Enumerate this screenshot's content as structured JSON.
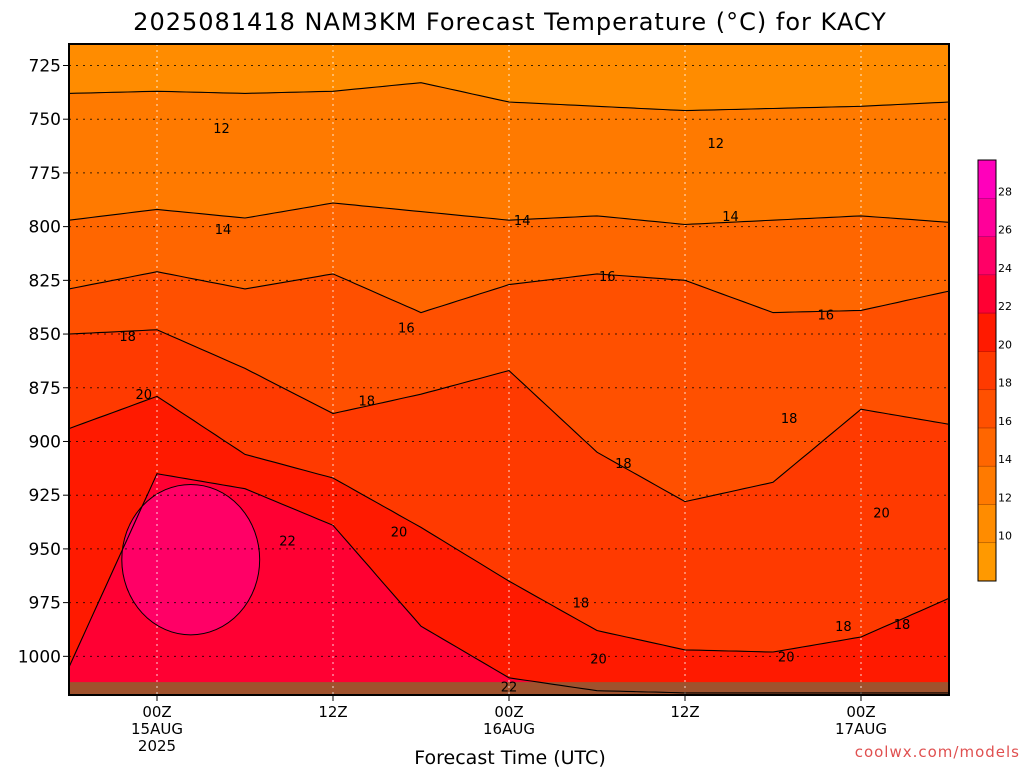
{
  "chart_data": {
    "type": "heatmap",
    "title": "2025081418 NAM3KM Forecast Temperature (°C) for KACY",
    "xlabel": "Forecast Time (UTC)",
    "ylabel": "",
    "credit": "coolwx.com/models",
    "y_axis": {
      "unit": "hPa",
      "inverted": true,
      "range": [
        715,
        1018
      ],
      "ticks": [
        {
          "value": 725,
          "label": "725"
        },
        {
          "value": 750,
          "label": "750"
        },
        {
          "value": 775,
          "label": "775"
        },
        {
          "value": 800,
          "label": "800"
        },
        {
          "value": 825,
          "label": "825"
        },
        {
          "value": 850,
          "label": "850"
        },
        {
          "value": 875,
          "label": "875"
        },
        {
          "value": 900,
          "label": "900"
        },
        {
          "value": 925,
          "label": "925"
        },
        {
          "value": 950,
          "label": "950"
        },
        {
          "value": 975,
          "label": "975"
        },
        {
          "value": 1000,
          "label": "1000"
        }
      ]
    },
    "x_axis": {
      "unit": "forecast hour",
      "range": [
        0,
        60
      ],
      "ticks": [
        {
          "value": 6,
          "lines": [
            "00Z",
            "15AUG",
            "2025"
          ]
        },
        {
          "value": 18,
          "lines": [
            "12Z"
          ]
        },
        {
          "value": 30,
          "lines": [
            "00Z",
            "16AUG"
          ]
        },
        {
          "value": 42,
          "lines": [
            "12Z"
          ]
        },
        {
          "value": 54,
          "lines": [
            "00Z",
            "17AUG"
          ]
        }
      ]
    },
    "grid": true,
    "surface_color": "#a0522d",
    "colorbar": {
      "position": "right",
      "levels": [
        8,
        10,
        12,
        14,
        16,
        18,
        20,
        22,
        24,
        26,
        28,
        30
      ],
      "colors": [
        "#ff9900",
        "#ff8c00",
        "#ff7a00",
        "#ff6600",
        "#ff5000",
        "#ff3a00",
        "#ff1a00",
        "#ff0033",
        "#ff0066",
        "#ff0099",
        "#ff00bb"
      ],
      "tick_labels": [
        "10",
        "12",
        "14",
        "16",
        "18",
        "20",
        "22",
        "24",
        "26",
        "28"
      ]
    },
    "isotherms": [
      {
        "value": 12,
        "pressure_by_hour": [
          [
            0,
            738
          ],
          [
            6,
            737
          ],
          [
            12,
            738
          ],
          [
            18,
            737
          ],
          [
            24,
            733
          ],
          [
            30,
            742
          ],
          [
            36,
            744
          ],
          [
            42,
            746
          ],
          [
            48,
            745
          ],
          [
            54,
            744
          ],
          [
            60,
            742
          ]
        ]
      },
      {
        "value": 14,
        "pressure_by_hour": [
          [
            0,
            797
          ],
          [
            6,
            792
          ],
          [
            12,
            796
          ],
          [
            18,
            789
          ],
          [
            24,
            793
          ],
          [
            30,
            797
          ],
          [
            36,
            795
          ],
          [
            42,
            799
          ],
          [
            48,
            797
          ],
          [
            54,
            795
          ],
          [
            60,
            798
          ]
        ]
      },
      {
        "value": 16,
        "pressure_by_hour": [
          [
            0,
            829
          ],
          [
            6,
            821
          ],
          [
            12,
            829
          ],
          [
            18,
            822
          ],
          [
            24,
            840
          ],
          [
            30,
            827
          ],
          [
            36,
            822
          ],
          [
            42,
            825
          ],
          [
            48,
            840
          ],
          [
            54,
            839
          ],
          [
            60,
            830
          ]
        ]
      },
      {
        "value": 18,
        "pressure_by_hour": [
          [
            0,
            850
          ],
          [
            6,
            848
          ],
          [
            12,
            866
          ],
          [
            18,
            887
          ],
          [
            24,
            878
          ],
          [
            30,
            867
          ],
          [
            36,
            905
          ],
          [
            42,
            928
          ],
          [
            48,
            919
          ],
          [
            54,
            885
          ],
          [
            60,
            892
          ]
        ]
      },
      {
        "value": 20,
        "pressure_by_hour": [
          [
            0,
            894
          ],
          [
            6,
            879
          ],
          [
            12,
            906
          ],
          [
            18,
            917
          ],
          [
            24,
            940
          ],
          [
            30,
            965
          ],
          [
            36,
            988
          ],
          [
            42,
            997
          ],
          [
            48,
            998
          ],
          [
            54,
            991
          ],
          [
            60,
            973
          ]
        ]
      },
      {
        "value": 22,
        "pressure_by_hour": [
          [
            0,
            1005
          ],
          [
            6,
            915
          ],
          [
            12,
            922
          ],
          [
            18,
            939
          ],
          [
            24,
            986
          ],
          [
            30,
            1010
          ],
          [
            36,
            1016
          ],
          [
            42,
            1017
          ],
          [
            48,
            1017
          ],
          [
            54,
            1017
          ],
          [
            60,
            1017
          ]
        ]
      }
    ],
    "contour_labels": [
      {
        "text": "12",
        "x": 10.4,
        "y": 754
      },
      {
        "text": "12",
        "x": 44.1,
        "y": 761
      },
      {
        "text": "14",
        "x": 10.5,
        "y": 801
      },
      {
        "text": "14",
        "x": 30.9,
        "y": 797
      },
      {
        "text": "14",
        "x": 45.1,
        "y": 795
      },
      {
        "text": "16",
        "x": 36.7,
        "y": 823
      },
      {
        "text": "16",
        "x": 23.0,
        "y": 847
      },
      {
        "text": "16",
        "x": 51.6,
        "y": 841
      },
      {
        "text": "18",
        "x": 4.0,
        "y": 851
      },
      {
        "text": "18",
        "x": 20.3,
        "y": 881
      },
      {
        "text": "18",
        "x": 37.8,
        "y": 910
      },
      {
        "text": "18",
        "x": 49.1,
        "y": 889
      },
      {
        "text": "18",
        "x": 34.9,
        "y": 975
      },
      {
        "text": "18",
        "x": 52.8,
        "y": 986
      },
      {
        "text": "18",
        "x": 56.8,
        "y": 985
      },
      {
        "text": "20",
        "x": 5.1,
        "y": 878
      },
      {
        "text": "20",
        "x": 22.5,
        "y": 942
      },
      {
        "text": "20",
        "x": 36.1,
        "y": 1001
      },
      {
        "text": "20",
        "x": 48.9,
        "y": 1000
      },
      {
        "text": "20",
        "x": 55.4,
        "y": 933
      },
      {
        "text": "22",
        "x": 14.9,
        "y": 946
      },
      {
        "text": "22",
        "x": 30.0,
        "y": 1014
      }
    ]
  }
}
